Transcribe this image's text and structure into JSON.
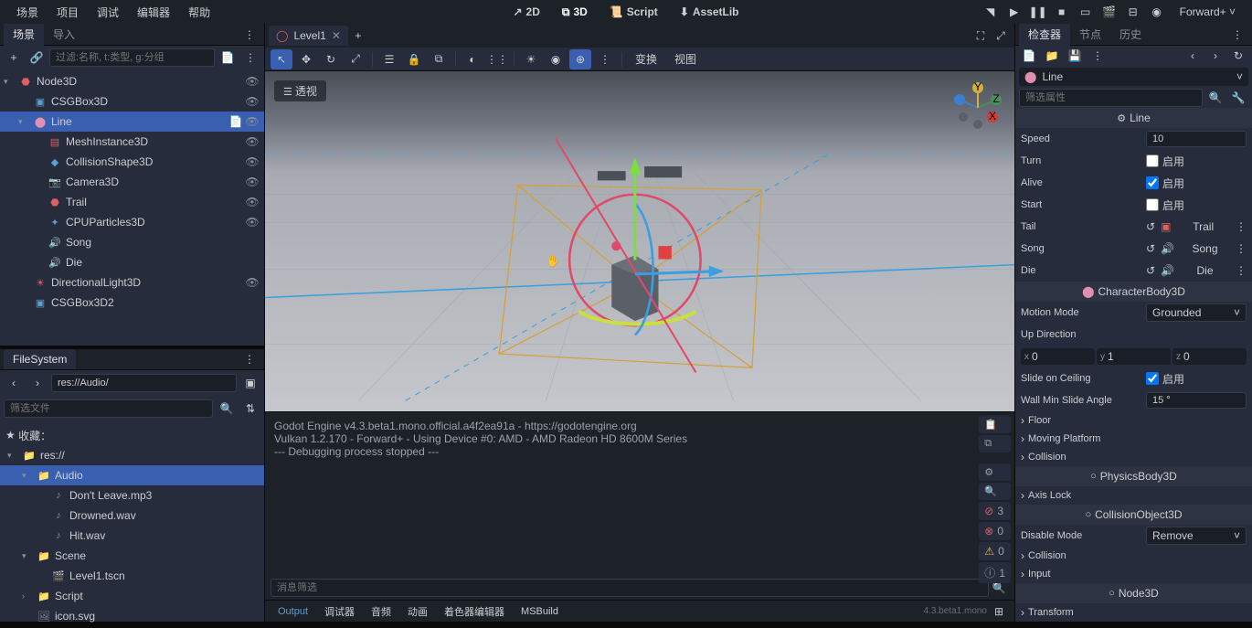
{
  "menu": {
    "items": [
      "场景",
      "项目",
      "调试",
      "编辑器",
      "帮助"
    ]
  },
  "center_tabs": {
    "t2d": "2D",
    "t3d": "3D",
    "script": "Script",
    "assetlib": "AssetLib"
  },
  "renderer": "Forward+",
  "scene_panel": {
    "tabs": {
      "scene": "场景",
      "import": "导入"
    },
    "filter_placeholder": "过滤:名称, t:类型, g:分组",
    "tree": [
      {
        "label": "Node3D",
        "indent": 0,
        "icon": "node3d",
        "color": "#e05f5f",
        "expand": "▾",
        "vis": true
      },
      {
        "label": "CSGBox3D",
        "indent": 1,
        "icon": "csg",
        "color": "#5a9fd4",
        "expand": "",
        "vis": true
      },
      {
        "label": "Line",
        "indent": 1,
        "icon": "body",
        "color": "#e08fb0",
        "expand": "▾",
        "vis": true,
        "selected": true,
        "script": true
      },
      {
        "label": "MeshInstance3D",
        "indent": 2,
        "icon": "mesh",
        "color": "#e05f5f",
        "expand": "",
        "vis": true
      },
      {
        "label": "CollisionShape3D",
        "indent": 2,
        "icon": "coll",
        "color": "#5a9fd4",
        "expand": "",
        "vis": true
      },
      {
        "label": "Camera3D",
        "indent": 2,
        "icon": "cam",
        "color": "#e05f5f",
        "expand": "",
        "vis": true
      },
      {
        "label": "Trail",
        "indent": 2,
        "icon": "node3d",
        "color": "#e05f5f",
        "expand": "",
        "vis": true
      },
      {
        "label": "CPUParticles3D",
        "indent": 2,
        "icon": "part",
        "color": "#5a9fd4",
        "expand": "",
        "vis": true
      },
      {
        "label": "Song",
        "indent": 2,
        "icon": "audio",
        "color": "#cdced2",
        "expand": "",
        "vis": false
      },
      {
        "label": "Die",
        "indent": 2,
        "icon": "audio",
        "color": "#cdced2",
        "expand": "",
        "vis": false
      },
      {
        "label": "DirectionalLight3D",
        "indent": 1,
        "icon": "light",
        "color": "#e05f5f",
        "expand": "",
        "vis": true
      },
      {
        "label": "CSGBox3D2",
        "indent": 1,
        "icon": "csg",
        "color": "#5a9fd4",
        "expand": "",
        "vis": false
      }
    ]
  },
  "filesystem": {
    "title": "FileSystem",
    "path": "res://Audio/",
    "filter_placeholder": "筛选文件",
    "fav_label": "收藏：",
    "tree": [
      {
        "label": "res://",
        "indent": 0,
        "icon": "folder",
        "expand": "▾"
      },
      {
        "label": "Audio",
        "indent": 1,
        "icon": "folder",
        "expand": "▾",
        "selected": true
      },
      {
        "label": "Don't Leave.mp3",
        "indent": 2,
        "icon": "audio"
      },
      {
        "label": "Drowned.wav",
        "indent": 2,
        "icon": "audio"
      },
      {
        "label": "Hit.wav",
        "indent": 2,
        "icon": "audio"
      },
      {
        "label": "Scene",
        "indent": 1,
        "icon": "folder",
        "expand": "▾"
      },
      {
        "label": "Level1.tscn",
        "indent": 2,
        "icon": "scene"
      },
      {
        "label": "Script",
        "indent": 1,
        "icon": "folder",
        "expand": "›"
      },
      {
        "label": "icon.svg",
        "indent": 1,
        "icon": "img"
      }
    ]
  },
  "scene_tab": {
    "name": "Level1"
  },
  "viewport": {
    "persp": "透视",
    "menu_transform": "变换",
    "menu_view": "视图"
  },
  "output": {
    "lines": [
      "Godot Engine v4.3.beta1.mono.official.a4f2ea91a - https://godotengine.org",
      "Vulkan 1.2.170 - Forward+ - Using Device #0: AMD - AMD Radeon HD 8600M Series",
      "",
      "--- Debugging process stopped ---"
    ],
    "stats": {
      "errors": "3",
      "warnings": "0",
      "info": "0",
      "msgs": "1"
    },
    "filter_placeholder": "消息筛选",
    "tabs": [
      "Output",
      "调试器",
      "音频",
      "动画",
      "着色器编辑器",
      "MSBuild"
    ],
    "version": "4.3.beta1.mono"
  },
  "inspector": {
    "tabs": {
      "inspector": "检查器",
      "node": "节点",
      "history": "历史"
    },
    "node_name": "Line",
    "filter_placeholder": "筛选属性",
    "sections": {
      "line": "Line",
      "charbody": "CharacterBody3D",
      "physbody": "PhysicsBody3D",
      "collobj": "CollisionObject3D",
      "node3d": "Node3D"
    },
    "props": {
      "speed": {
        "label": "Speed",
        "value": "10"
      },
      "turn": {
        "label": "Turn",
        "enable": "启用",
        "checked": false
      },
      "alive": {
        "label": "Alive",
        "enable": "启用",
        "checked": true
      },
      "start": {
        "label": "Start",
        "enable": "启用",
        "checked": false
      },
      "tail": {
        "label": "Tail",
        "value": "Trail"
      },
      "song": {
        "label": "Song",
        "value": "Song"
      },
      "die": {
        "label": "Die",
        "value": "Die"
      },
      "motion_mode": {
        "label": "Motion Mode",
        "value": "Grounded"
      },
      "up_dir": {
        "label": "Up Direction"
      },
      "up_vec": {
        "x": "0",
        "y": "1",
        "z": "0"
      },
      "slide_ceil": {
        "label": "Slide on Ceiling",
        "enable": "启用",
        "checked": true
      },
      "wall_angle": {
        "label": "Wall Min Slide Angle",
        "value": "15 °"
      },
      "disable_mode": {
        "label": "Disable Mode",
        "value": "Remove"
      }
    },
    "expands": [
      "Floor",
      "Moving Platform",
      "Collision",
      "Axis Lock",
      "Collision",
      "Input",
      "Transform"
    ]
  }
}
